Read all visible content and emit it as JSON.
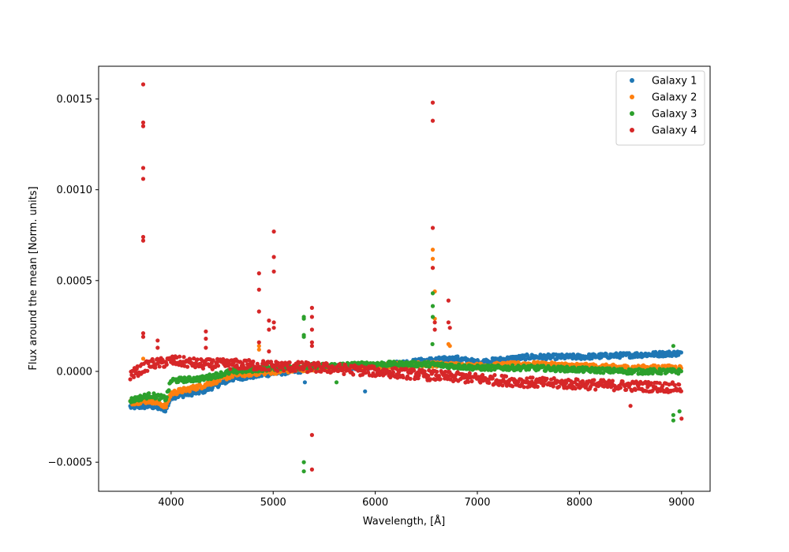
{
  "chart_data": {
    "type": "scatter",
    "title": "",
    "xlabel": "Wavelength, [Å]",
    "ylabel": "Flux around the mean [Norm. units]",
    "xlim": [
      3290,
      9280
    ],
    "ylim": [
      -0.00066,
      0.00168
    ],
    "xticks": [
      4000,
      5000,
      6000,
      7000,
      8000,
      9000
    ],
    "xtick_labels": [
      "4000",
      "5000",
      "6000",
      "7000",
      "8000",
      "9000"
    ],
    "yticks": [
      -0.0005,
      0.0,
      0.0005,
      0.001,
      0.0015
    ],
    "ytick_labels": [
      "−0.0005",
      "0.0000",
      "0.0005",
      "0.0010",
      "0.0015"
    ],
    "grid": false,
    "legend_position": "top-right",
    "series": [
      {
        "name": "Galaxy 1",
        "color": "#1f77b4",
        "trend": [
          [
            3600,
            -0.000195
          ],
          [
            3800,
            -0.00019
          ],
          [
            3950,
            -0.00021
          ],
          [
            4000,
            -0.00014
          ],
          [
            4300,
            -0.00011
          ],
          [
            4600,
            -4e-05
          ],
          [
            5000,
            -1e-05
          ],
          [
            5500,
            2e-05
          ],
          [
            6000,
            3e-05
          ],
          [
            6500,
            6e-05
          ],
          [
            6800,
            7e-05
          ],
          [
            7000,
            5e-05
          ],
          [
            7500,
            8e-05
          ],
          [
            8000,
            8e-05
          ],
          [
            8500,
            9e-05
          ],
          [
            9000,
            0.0001
          ]
        ],
        "spikes": [
          [
            5900,
            -0.00011
          ],
          [
            5310,
            -6e-05
          ]
        ]
      },
      {
        "name": "Galaxy 2",
        "color": "#ff7f0e",
        "trend": [
          [
            3600,
            -0.00017
          ],
          [
            3800,
            -0.00016
          ],
          [
            3950,
            -0.00019
          ],
          [
            4000,
            -0.00012
          ],
          [
            4300,
            -8e-05
          ],
          [
            4600,
            -2e-05
          ],
          [
            5000,
            0.0
          ],
          [
            5500,
            2e-05
          ],
          [
            6000,
            3e-05
          ],
          [
            6500,
            4e-05
          ],
          [
            7000,
            3e-05
          ],
          [
            7500,
            4e-05
          ],
          [
            8000,
            3e-05
          ],
          [
            8500,
            2e-05
          ],
          [
            9000,
            2e-05
          ]
        ],
        "spikes": [
          [
            3727,
            7e-05
          ],
          [
            4861,
            0.00014
          ],
          [
            4861,
            0.00012
          ],
          [
            6563,
            0.00067
          ],
          [
            6563,
            0.00062
          ],
          [
            6563,
            0.00057
          ],
          [
            6583,
            0.00044
          ],
          [
            6583,
            0.00029
          ],
          [
            6717,
            0.00015
          ],
          [
            6731,
            0.00014
          ]
        ]
      },
      {
        "name": "Galaxy 3",
        "color": "#2ca02c",
        "trend": [
          [
            3600,
            -0.00016
          ],
          [
            3800,
            -0.00013
          ],
          [
            3950,
            -0.00015
          ],
          [
            4000,
            -5e-05
          ],
          [
            4300,
            -4e-05
          ],
          [
            4600,
            0.0
          ],
          [
            5000,
            2e-05
          ],
          [
            5500,
            3e-05
          ],
          [
            6000,
            4e-05
          ],
          [
            6500,
            4e-05
          ],
          [
            7000,
            2e-05
          ],
          [
            7500,
            2e-05
          ],
          [
            8000,
            1e-05
          ],
          [
            8500,
            0.0
          ],
          [
            9000,
            0.0
          ]
        ],
        "spikes": [
          [
            5300,
            0.0003
          ],
          [
            5300,
            0.00029
          ],
          [
            5300,
            0.0002
          ],
          [
            5300,
            0.00019
          ],
          [
            5300,
            -0.0005
          ],
          [
            5300,
            -0.00055
          ],
          [
            6563,
            0.00043
          ],
          [
            6563,
            0.00036
          ],
          [
            6563,
            0.0003
          ],
          [
            6560,
            0.00015
          ],
          [
            8920,
            0.00014
          ],
          [
            8920,
            -0.00024
          ],
          [
            8920,
            -0.00027
          ],
          [
            8980,
            -0.00022
          ],
          [
            5620,
            -6e-05
          ]
        ]
      },
      {
        "name": "Galaxy 4",
        "color": "#d62728",
        "trend": [
          [
            3600,
            -2e-05
          ],
          [
            3800,
            4e-05
          ],
          [
            3950,
            5e-05
          ],
          [
            4000,
            6e-05
          ],
          [
            4300,
            4e-05
          ],
          [
            4600,
            4e-05
          ],
          [
            5000,
            3e-05
          ],
          [
            5500,
            2e-05
          ],
          [
            6000,
            0.0
          ],
          [
            6500,
            -2e-05
          ],
          [
            7000,
            -4e-05
          ],
          [
            7500,
            -6e-05
          ],
          [
            8000,
            -7e-05
          ],
          [
            8500,
            -8e-05
          ],
          [
            9000,
            -9e-05
          ]
        ],
        "spikes": [
          [
            3727,
            0.00158
          ],
          [
            3727,
            0.00137
          ],
          [
            3727,
            0.00135
          ],
          [
            3727,
            0.00112
          ],
          [
            3727,
            0.00106
          ],
          [
            3727,
            0.00074
          ],
          [
            3727,
            0.00072
          ],
          [
            3727,
            0.00021
          ],
          [
            3727,
            0.00019
          ],
          [
            3868,
            0.00017
          ],
          [
            3868,
            0.00013
          ],
          [
            4340,
            0.00022
          ],
          [
            4340,
            0.00018
          ],
          [
            4340,
            0.00013
          ],
          [
            4861,
            0.00054
          ],
          [
            4861,
            0.00045
          ],
          [
            4861,
            0.00033
          ],
          [
            4861,
            0.00016
          ],
          [
            4959,
            0.00028
          ],
          [
            4959,
            0.00023
          ],
          [
            4959,
            0.00011
          ],
          [
            5007,
            0.00077
          ],
          [
            5007,
            0.00063
          ],
          [
            5007,
            0.00055
          ],
          [
            5007,
            0.00027
          ],
          [
            5007,
            0.00024
          ],
          [
            5380,
            0.00035
          ],
          [
            5380,
            0.0003
          ],
          [
            5380,
            0.00023
          ],
          [
            5380,
            0.00016
          ],
          [
            5380,
            0.00014
          ],
          [
            5380,
            -0.00035
          ],
          [
            5380,
            -0.00054
          ],
          [
            6563,
            0.00148
          ],
          [
            6563,
            0.00138
          ],
          [
            6563,
            0.00079
          ],
          [
            6563,
            0.00057
          ],
          [
            6583,
            0.00027
          ],
          [
            6583,
            0.00023
          ],
          [
            6717,
            0.00039
          ],
          [
            6717,
            0.00027
          ],
          [
            6731,
            0.00024
          ],
          [
            9000,
            -0.00026
          ],
          [
            8500,
            -0.00019
          ]
        ]
      }
    ]
  }
}
